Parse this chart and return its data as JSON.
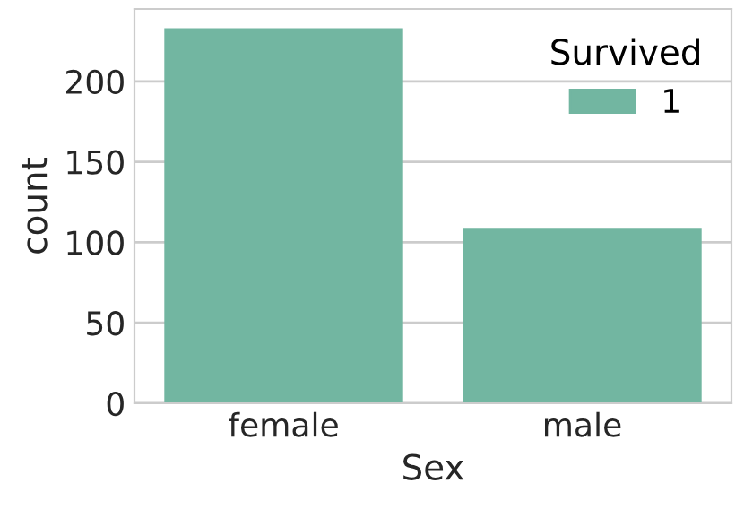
{
  "chart_data": {
    "type": "bar",
    "xlabel": "Sex",
    "ylabel": "count",
    "categories": [
      "female",
      "male"
    ],
    "series": [
      {
        "name": "1",
        "color": "#72b6a1",
        "values": [
          233,
          109
        ]
      }
    ],
    "legend_title": "Survived",
    "legend": "top right",
    "ylim": [
      0,
      245
    ],
    "yticks": [
      0,
      50,
      100,
      150,
      200
    ],
    "grid": "y"
  }
}
